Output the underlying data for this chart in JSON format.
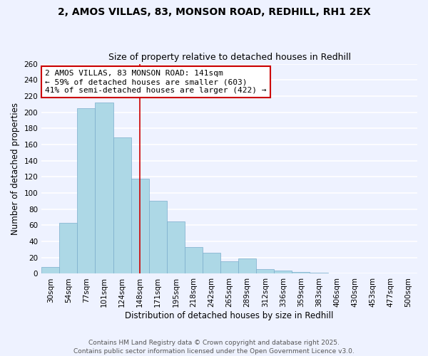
{
  "title": "2, AMOS VILLAS, 83, MONSON ROAD, REDHILL, RH1 2EX",
  "subtitle": "Size of property relative to detached houses in Redhill",
  "xlabel": "Distribution of detached houses by size in Redhill",
  "ylabel": "Number of detached properties",
  "bar_color": "#add8e6",
  "bar_edge_color": "#7aadcc",
  "categories": [
    "30sqm",
    "54sqm",
    "77sqm",
    "101sqm",
    "124sqm",
    "148sqm",
    "171sqm",
    "195sqm",
    "218sqm",
    "242sqm",
    "265sqm",
    "289sqm",
    "312sqm",
    "336sqm",
    "359sqm",
    "383sqm",
    "406sqm",
    "430sqm",
    "453sqm",
    "477sqm",
    "500sqm"
  ],
  "values": [
    8,
    63,
    205,
    212,
    169,
    118,
    90,
    65,
    33,
    26,
    15,
    19,
    6,
    4,
    2,
    1,
    0,
    0,
    0,
    0,
    0
  ],
  "ylim": [
    0,
    260
  ],
  "yticks": [
    0,
    20,
    40,
    60,
    80,
    100,
    120,
    140,
    160,
    180,
    200,
    220,
    240,
    260
  ],
  "vline_x": 5.0,
  "vline_color": "#cc0000",
  "annotation_line1": "2 AMOS VILLAS, 83 MONSON ROAD: 141sqm",
  "annotation_line2": "← 59% of detached houses are smaller (603)",
  "annotation_line3": "41% of semi-detached houses are larger (422) →",
  "footer_line1": "Contains HM Land Registry data © Crown copyright and database right 2025.",
  "footer_line2": "Contains public sector information licensed under the Open Government Licence v3.0.",
  "background_color": "#eef2ff",
  "grid_color": "#ffffff",
  "title_fontsize": 10,
  "subtitle_fontsize": 9,
  "axis_label_fontsize": 8.5,
  "tick_fontsize": 7.5,
  "annotation_fontsize": 8,
  "footer_fontsize": 6.5
}
